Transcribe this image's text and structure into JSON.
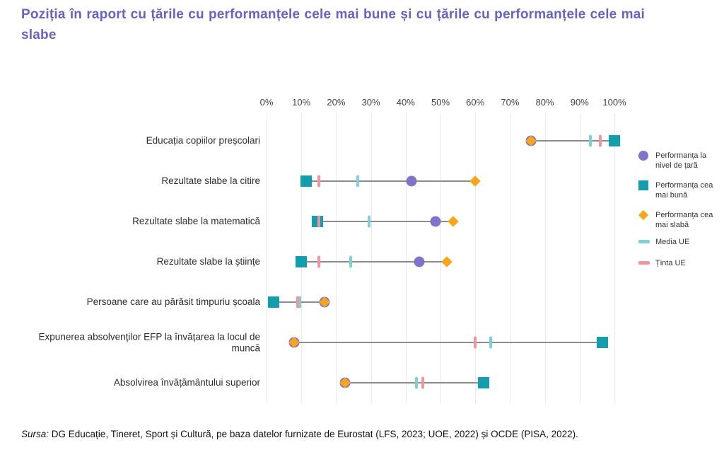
{
  "title": "Poziția în raport cu țările cu performanțele cele mai bune și cu țările cu performanțele cele mai slabe",
  "source": {
    "prefix": "Sursa:",
    "text": " DG Educație, Tineret, Sport și Cultură, pe baza datelor furnizate de Eurostat (LFS, 2023; UOE, 2022) și OCDE (PISA, 2022)."
  },
  "colors": {
    "title_purple": "#6862c0",
    "country_purple": "#8173c9",
    "best_teal": "#149dac",
    "worst_orange": "#f6a51f",
    "eu_average_teal": "#7ed0d6",
    "eu_target_pink": "#f195a1",
    "connector_gray": "#8c8c8c",
    "gridline_gray": "#e9e9e9"
  },
  "chart_data": {
    "type": "scatter",
    "subtype": "dumbbell-dot-plot",
    "title": "",
    "xlabel": "",
    "ylabel": "",
    "xlim": [
      0,
      100
    ],
    "x_ticks": [
      "0%",
      "10%",
      "20%",
      "30%",
      "40%",
      "50%",
      "60%",
      "70%",
      "80%",
      "90%",
      "100%"
    ],
    "grid": "vertical",
    "legend_position": "right",
    "categories": [
      "Educația copiilor preșcolari",
      "Rezultate slabe la citire",
      "Rezultate slabe la matematică",
      "Rezultate slabe la științe",
      "Persoane care au părăsit timpuriu școala",
      "Expunerea absolvenților EFP la învățarea la locul de muncă",
      "Absolvirea învățământului superior"
    ],
    "series": [
      {
        "key": "country",
        "name": "Performanța la nivel de țară",
        "marker": "circle",
        "color": "#8173c9",
        "values": [
          76.1,
          41.7,
          48.6,
          44.0,
          16.6,
          8.0,
          22.5
        ]
      },
      {
        "key": "best",
        "name": "Performanța cea mai bună",
        "marker": "square",
        "color": "#149dac",
        "values": [
          100.0,
          11.4,
          14.7,
          10.0,
          2.0,
          96.5,
          62.3
        ]
      },
      {
        "key": "worst",
        "name": "Performanța cea mai slabă",
        "marker": "diamond",
        "color": "#f6a51f",
        "values": [
          76.1,
          60.0,
          53.6,
          51.8,
          16.6,
          8.0,
          22.5
        ]
      },
      {
        "key": "eu-average",
        "name": "Media UE",
        "marker": "vtick",
        "color": "#7ed0d6",
        "values": [
          93.1,
          26.2,
          29.5,
          24.2,
          9.5,
          64.5,
          43.1
        ]
      },
      {
        "key": "eu-target",
        "name": "Ținta UE",
        "marker": "vtick",
        "color": "#f195a1",
        "values": [
          96.0,
          15.0,
          15.0,
          15.0,
          9.0,
          60.0,
          45.0
        ]
      }
    ]
  }
}
